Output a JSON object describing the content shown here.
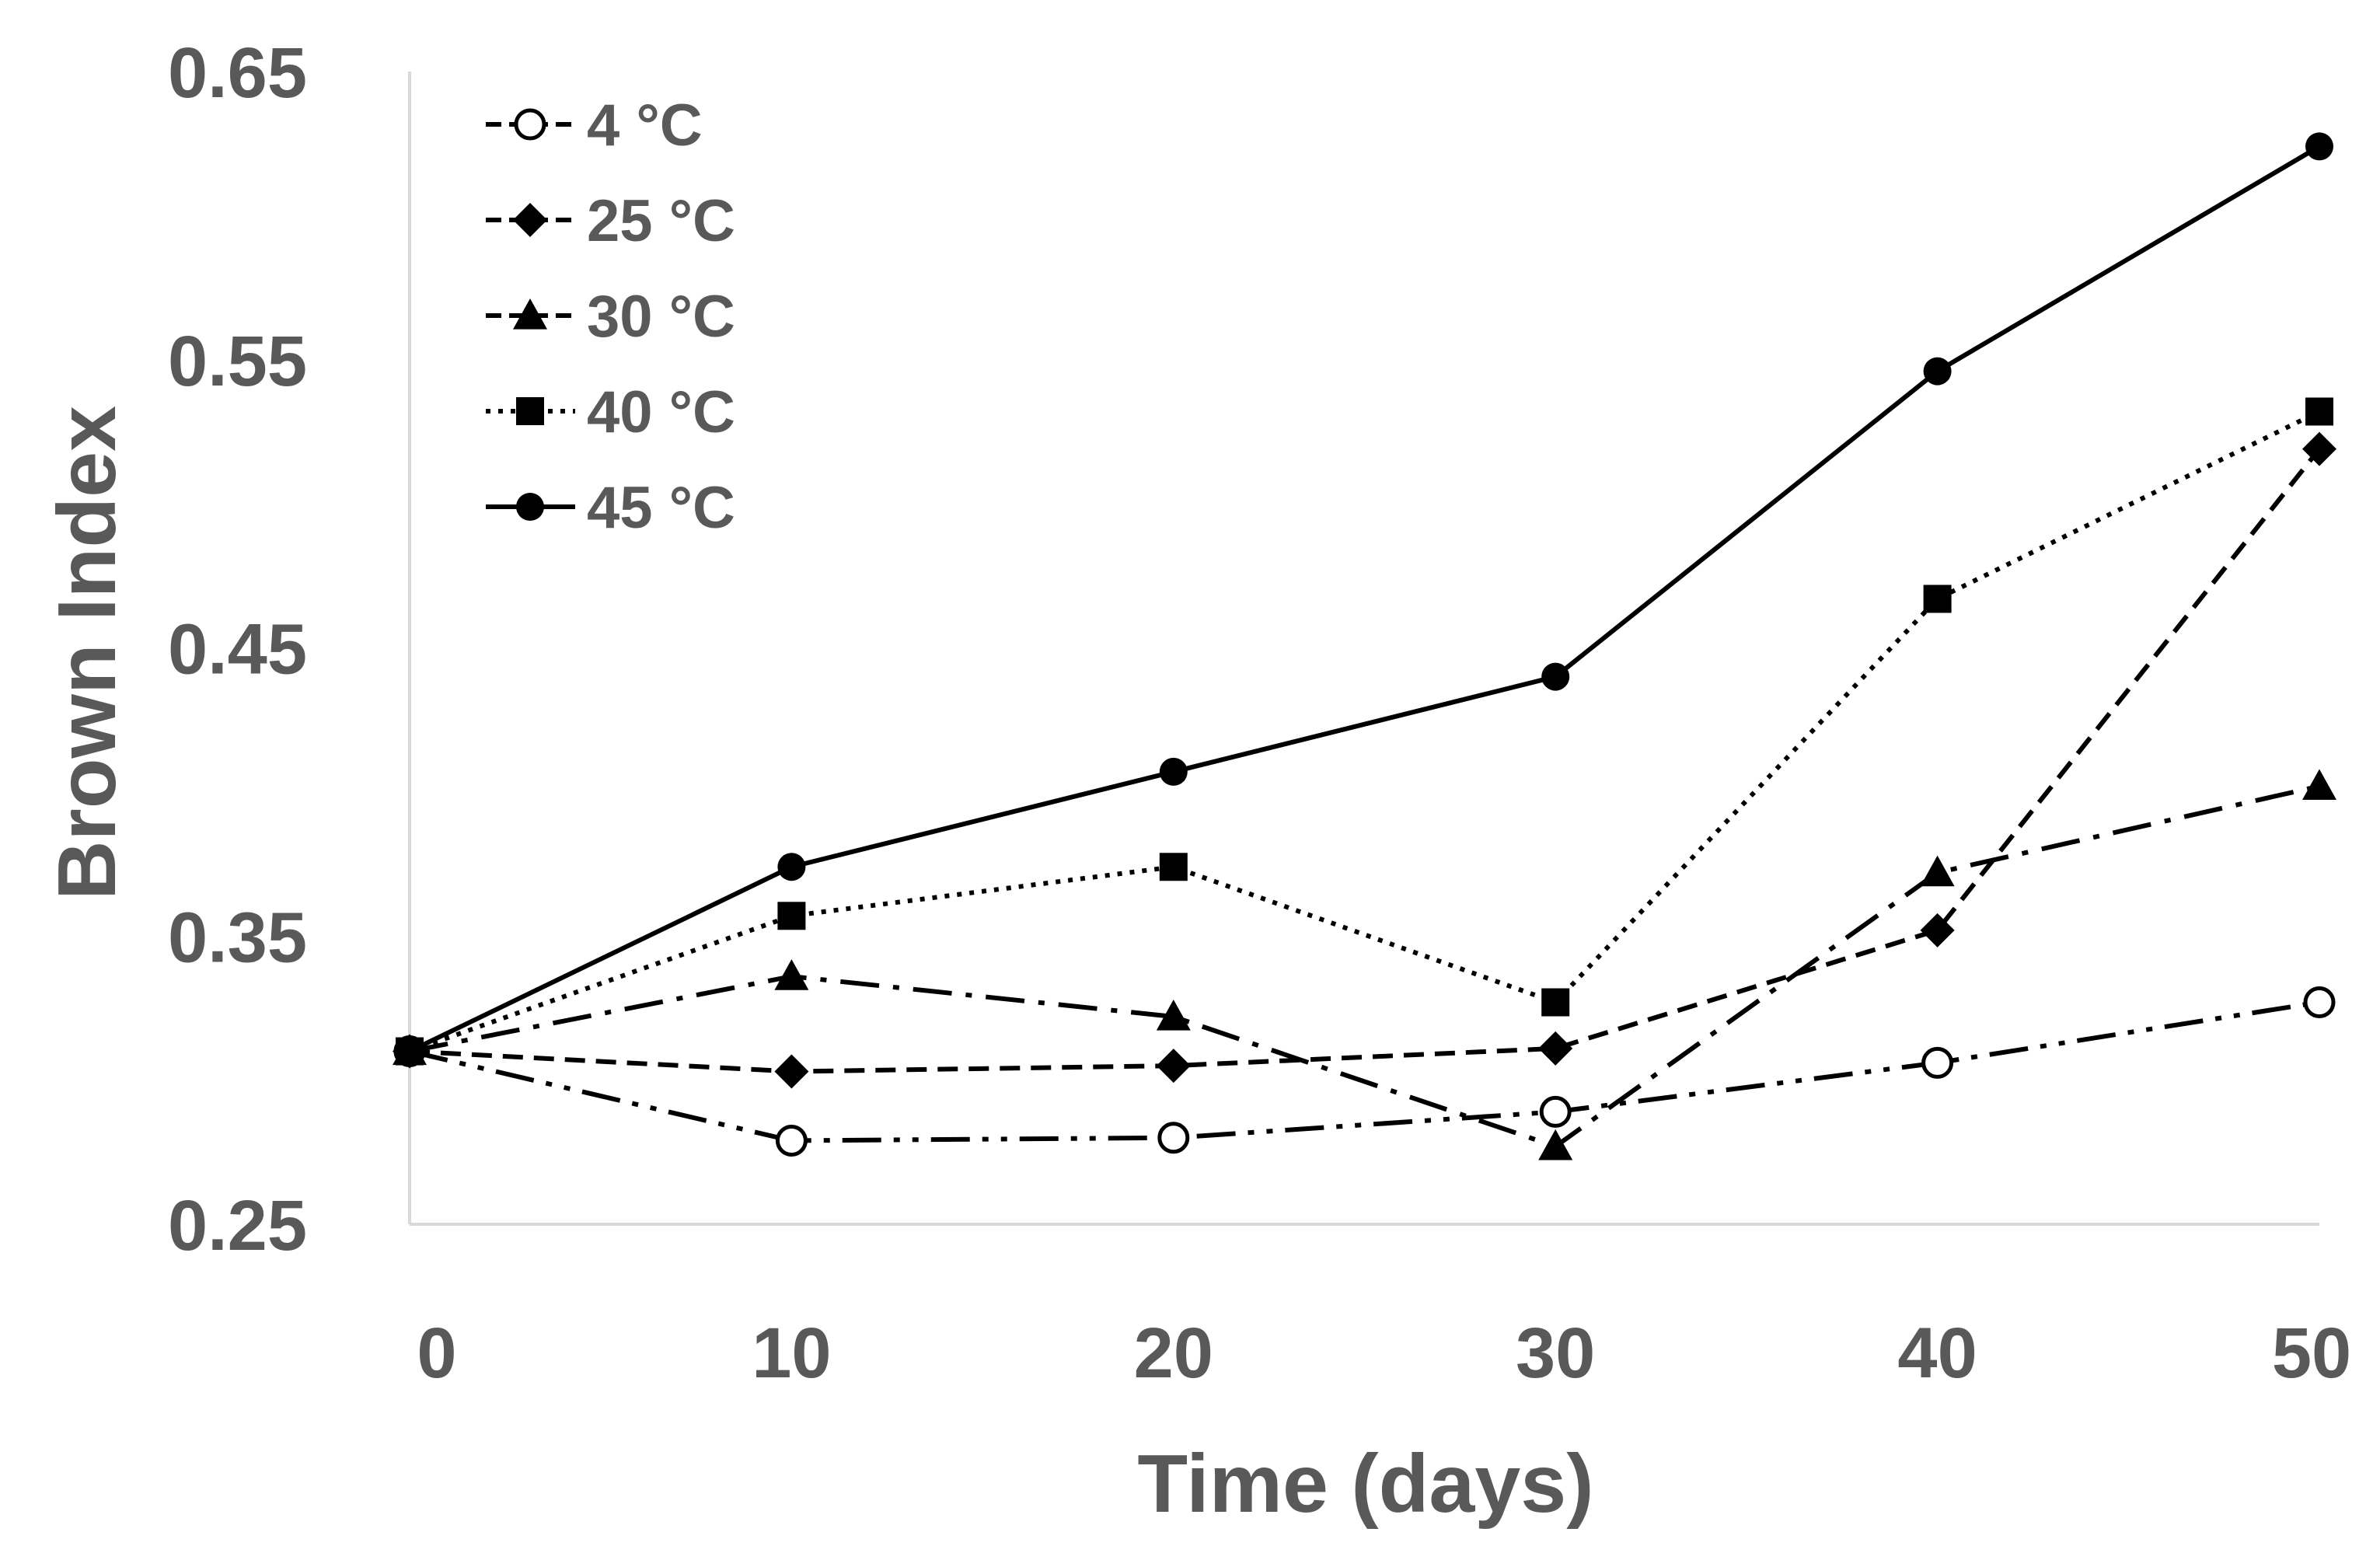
{
  "chart_data": {
    "type": "line",
    "title": "",
    "xlabel": "Time (days)",
    "ylabel": "Brown Index",
    "x": [
      0,
      10,
      20,
      30,
      40,
      50
    ],
    "x_tick_labels": [
      "0",
      "10",
      "20",
      "30",
      "40",
      "50"
    ],
    "y_tick_labels": [
      "0.65",
      "0.55",
      "0.45",
      "0.35",
      "0.25"
    ],
    "y_ticks": [
      0.65,
      0.55,
      0.45,
      0.35,
      0.25
    ],
    "xlim": [
      0,
      50
    ],
    "ylim": [
      0.25,
      0.65
    ],
    "grid": false,
    "legend_position": "top-left",
    "series": [
      {
        "name": "4 °C",
        "marker": "open-circle",
        "dash": "long-dash-dot-dot",
        "values": [
          0.31,
          0.279,
          0.28,
          0.289,
          0.306,
          0.327
        ]
      },
      {
        "name": "25 °C",
        "marker": "diamond",
        "dash": "dash",
        "values": [
          0.31,
          0.303,
          0.305,
          0.311,
          0.352,
          0.519
        ]
      },
      {
        "name": "30 °C",
        "marker": "triangle",
        "dash": "long-dash-dot",
        "values": [
          0.31,
          0.336,
          0.322,
          0.277,
          0.372,
          0.402
        ]
      },
      {
        "name": "40 °C",
        "marker": "square",
        "dash": "dot",
        "values": [
          0.31,
          0.357,
          0.374,
          0.327,
          0.467,
          0.532
        ]
      },
      {
        "name": "45 °C",
        "marker": "filled-circle",
        "dash": "solid",
        "values": [
          0.31,
          0.374,
          0.407,
          0.44,
          0.546,
          0.624
        ]
      }
    ],
    "colors": {
      "line": "#000000",
      "axis": "#d9d9d9",
      "text": "#595959"
    }
  }
}
